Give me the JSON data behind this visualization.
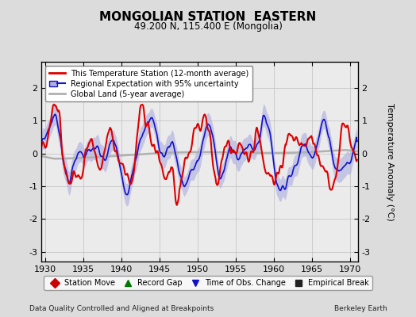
{
  "title": "MONGOLIAN STATION  EASTERN",
  "subtitle": "49.200 N, 115.400 E (Mongolia)",
  "footer_left": "Data Quality Controlled and Aligned at Breakpoints",
  "footer_right": "Berkeley Earth",
  "xlabel_years": [
    1930,
    1935,
    1940,
    1945,
    1950,
    1955,
    1960,
    1965,
    1970
  ],
  "ylim": [
    -3.3,
    2.8
  ],
  "yticks": [
    -3,
    -2,
    -1,
    0,
    1,
    2
  ],
  "ylabel": "Temperature Anomaly (°C)",
  "xlim": [
    1929.5,
    1971.0
  ],
  "bg_color": "#dcdcdc",
  "plot_bg_color": "#ebebeb",
  "red_color": "#dd0000",
  "blue_color": "#1111cc",
  "blue_fill_color": "#b0b0e0",
  "gray_color": "#b0b0b0",
  "legend_items": [
    "This Temperature Station (12-month average)",
    "Regional Expectation with 95% uncertainty",
    "Global Land (5-year average)"
  ],
  "bottom_legend": [
    {
      "marker": "D",
      "color": "#cc0000",
      "label": "Station Move"
    },
    {
      "marker": "^",
      "color": "#007700",
      "label": "Record Gap"
    },
    {
      "marker": "v",
      "color": "#1111cc",
      "label": "Time of Obs. Change"
    },
    {
      "marker": "s",
      "color": "#222222",
      "label": "Empirical Break"
    }
  ]
}
